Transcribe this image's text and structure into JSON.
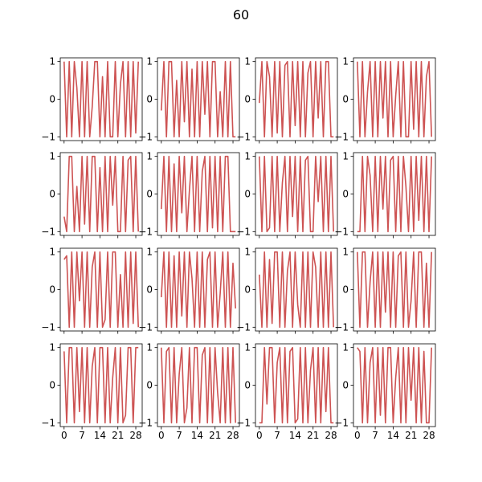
{
  "title": "60",
  "colors": {
    "line": "#cd5353",
    "axes": "#000000",
    "background": "#ffffff"
  },
  "chart_data": {
    "type": "line",
    "layout": "4x4 grid of small multiples, shared x and y axes",
    "xlim": [
      -1.5,
      30.5
    ],
    "ylim": [
      -1.1,
      1.1
    ],
    "xticks": [
      0,
      7,
      14,
      21,
      28
    ],
    "yticks": [
      -1,
      0,
      1
    ],
    "ytick_labels": [
      "−1",
      "0",
      "1"
    ],
    "grid": false,
    "panels": [
      {
        "x": [
          0,
          1,
          2,
          3,
          4,
          5,
          6,
          7,
          8,
          9,
          10,
          11,
          12,
          13,
          14,
          15,
          16,
          17,
          18,
          19,
          20,
          21,
          22,
          23,
          24,
          25,
          26,
          27,
          28,
          29
        ],
        "y": [
          1,
          -1,
          1,
          -1,
          1,
          0.3,
          -1,
          1,
          -1,
          1,
          -1,
          -0.2,
          1,
          1,
          -1,
          0.6,
          -1,
          1,
          -1,
          -1,
          1,
          -1,
          0.4,
          1,
          -1,
          1,
          -1,
          1,
          -0.9,
          1
        ]
      },
      {
        "x": [
          0,
          1,
          2,
          3,
          4,
          5,
          6,
          7,
          8,
          9,
          10,
          11,
          12,
          13,
          14,
          15,
          16,
          17,
          18,
          19,
          20,
          21,
          22,
          23,
          24,
          25,
          26,
          27,
          28,
          29
        ],
        "y": [
          -0.3,
          1,
          -1,
          1,
          1,
          -1,
          0.5,
          -1,
          1,
          -0.6,
          1,
          -1,
          0.8,
          -1,
          1,
          -1,
          1,
          -0.4,
          1,
          -1,
          1,
          1,
          -1,
          0.2,
          -1,
          1,
          -1,
          1,
          -1,
          -1
        ]
      },
      {
        "x": [
          0,
          1,
          2,
          3,
          4,
          5,
          6,
          7,
          8,
          9,
          10,
          11,
          12,
          13,
          14,
          15,
          16,
          17,
          18,
          19,
          20,
          21,
          22,
          23,
          24,
          25,
          26,
          27,
          28,
          29
        ],
        "y": [
          -0.1,
          1,
          -1,
          1,
          0.6,
          -1,
          1,
          -0.9,
          1,
          -1,
          0.9,
          1,
          -1,
          1,
          -0.7,
          1,
          -1,
          1,
          -1,
          0.7,
          1,
          -1,
          1,
          -0.5,
          1,
          -1,
          1,
          1,
          -1,
          -1
        ]
      },
      {
        "x": [
          0,
          1,
          2,
          3,
          4,
          5,
          6,
          7,
          8,
          9,
          10,
          11,
          12,
          13,
          14,
          15,
          16,
          17,
          18,
          19,
          20,
          21,
          22,
          23,
          24,
          25,
          26,
          27,
          28,
          29
        ],
        "y": [
          1,
          -1,
          1,
          -1,
          0.2,
          1,
          -1,
          1,
          -1,
          1,
          -0.5,
          1,
          -1,
          1,
          -1,
          0.1,
          1,
          -1,
          1,
          -1,
          -1,
          1,
          -0.8,
          1,
          -1,
          1,
          -1,
          0.6,
          1,
          -1
        ]
      },
      {
        "x": [
          0,
          1,
          2,
          3,
          4,
          5,
          6,
          7,
          8,
          9,
          10,
          11,
          12,
          13,
          14,
          15,
          16,
          17,
          18,
          19,
          20,
          21,
          22,
          23,
          24,
          25,
          26,
          27,
          28,
          29
        ],
        "y": [
          -0.6,
          -1,
          1,
          1,
          -1,
          0.2,
          -1,
          1,
          -0.8,
          1,
          -1,
          1,
          1,
          -1,
          0.7,
          -1,
          1,
          -1,
          1,
          -0.3,
          1,
          -1,
          -1,
          1,
          -1,
          0.9,
          1,
          -1,
          1,
          -1
        ]
      },
      {
        "x": [
          0,
          1,
          2,
          3,
          4,
          5,
          6,
          7,
          8,
          9,
          10,
          11,
          12,
          13,
          14,
          15,
          16,
          17,
          18,
          19,
          20,
          21,
          22,
          23,
          24,
          25,
          26,
          27,
          28,
          29
        ],
        "y": [
          -0.4,
          1,
          -1,
          1,
          -1,
          0.8,
          -1,
          1,
          -0.5,
          1,
          -1,
          0.1,
          1,
          -1,
          1,
          -1,
          0.6,
          1,
          -1,
          1,
          -0.9,
          1,
          -1,
          1,
          -1,
          1,
          1,
          -1,
          -1,
          -1
        ]
      },
      {
        "x": [
          0,
          1,
          2,
          3,
          4,
          5,
          6,
          7,
          8,
          9,
          10,
          11,
          12,
          13,
          14,
          15,
          16,
          17,
          18,
          19,
          20,
          21,
          22,
          23,
          24,
          25,
          26,
          27,
          28,
          29
        ],
        "y": [
          1,
          -1,
          1,
          -1,
          -0.9,
          1,
          -1,
          1,
          -1,
          0.3,
          1,
          -1,
          1,
          -0.6,
          1,
          -1,
          1,
          -1,
          0.9,
          1,
          -1,
          -1,
          1,
          -0.2,
          1,
          -1,
          1,
          -1,
          1,
          -1
        ]
      },
      {
        "x": [
          0,
          1,
          2,
          3,
          4,
          5,
          6,
          7,
          8,
          9,
          10,
          11,
          12,
          13,
          14,
          15,
          16,
          17,
          18,
          19,
          20,
          21,
          22,
          23,
          24,
          25,
          26,
          27,
          28,
          29
        ],
        "y": [
          -1,
          -1,
          1,
          -1,
          1,
          0.5,
          -1,
          1,
          -1,
          1,
          -0.4,
          1,
          -1,
          0.9,
          1,
          -1,
          1,
          -1,
          1,
          0.2,
          -1,
          1,
          -1,
          1,
          -0.7,
          1,
          -1,
          1,
          -1,
          1
        ]
      },
      {
        "x": [
          0,
          1,
          2,
          3,
          4,
          5,
          6,
          7,
          8,
          9,
          10,
          11,
          12,
          13,
          14,
          15,
          16,
          17,
          18,
          19,
          20,
          21,
          22,
          23,
          24,
          25,
          26,
          27,
          28,
          29
        ],
        "y": [
          0.8,
          0.9,
          -1,
          1,
          -1,
          1,
          -0.3,
          1,
          -1,
          1,
          -1,
          0.6,
          1,
          -1,
          1,
          -1,
          -0.8,
          1,
          -1,
          1,
          1,
          -1,
          0.4,
          -1,
          1,
          -1,
          1,
          -0.9,
          1,
          -1
        ]
      },
      {
        "x": [
          0,
          1,
          2,
          3,
          4,
          5,
          6,
          7,
          8,
          9,
          10,
          11,
          12,
          13,
          14,
          15,
          16,
          17,
          18,
          19,
          20,
          21,
          22,
          23,
          24,
          25,
          26,
          27,
          28,
          29
        ],
        "y": [
          -0.2,
          1,
          -1,
          1,
          -1,
          0.9,
          -1,
          1,
          -0.7,
          1,
          -1,
          1,
          0.3,
          -1,
          1,
          -1,
          1,
          -1,
          0.8,
          1,
          -1,
          1,
          -1,
          -0.1,
          1,
          -1,
          1,
          -1,
          0.7,
          -0.5
        ]
      },
      {
        "x": [
          0,
          1,
          2,
          3,
          4,
          5,
          6,
          7,
          8,
          9,
          10,
          11,
          12,
          13,
          14,
          15,
          16,
          17,
          18,
          19,
          20,
          21,
          22,
          23,
          24,
          25,
          26,
          27,
          28,
          29
        ],
        "y": [
          0.4,
          -1,
          1,
          -1,
          0.8,
          -0.9,
          1,
          1,
          -1,
          1,
          -1,
          0.5,
          1,
          -1,
          1,
          -0.4,
          -1,
          1,
          -1,
          1,
          -1,
          1,
          0.6,
          -1,
          1,
          -1,
          1,
          -1,
          1,
          -1
        ]
      },
      {
        "x": [
          0,
          1,
          2,
          3,
          4,
          5,
          6,
          7,
          8,
          9,
          10,
          11,
          12,
          13,
          14,
          15,
          16,
          17,
          18,
          19,
          20,
          21,
          22,
          23,
          24,
          25,
          26,
          27,
          28,
          29
        ],
        "y": [
          1,
          -1,
          1,
          1,
          -1,
          0.2,
          1,
          -1,
          1,
          -1,
          1,
          -0.6,
          1,
          -1,
          1,
          -1,
          0.9,
          1,
          -1,
          1,
          -1,
          -0.3,
          1,
          -1,
          1,
          1,
          -1,
          0.7,
          -1,
          1
        ]
      },
      {
        "x": [
          0,
          1,
          2,
          3,
          4,
          5,
          6,
          7,
          8,
          9,
          10,
          11,
          12,
          13,
          14,
          15,
          16,
          17,
          18,
          19,
          20,
          21,
          22,
          23,
          24,
          25,
          26,
          27,
          28,
          29
        ],
        "y": [
          0.9,
          -1,
          1,
          1,
          -1,
          1,
          -0.7,
          1,
          -1,
          1,
          -1,
          0.5,
          1,
          -1,
          1,
          1,
          -1,
          1,
          -1,
          0.2,
          1,
          -1,
          1,
          -1,
          -0.8,
          1,
          1,
          -1,
          1,
          1
        ]
      },
      {
        "x": [
          0,
          1,
          2,
          3,
          4,
          5,
          6,
          7,
          8,
          9,
          10,
          11,
          12,
          13,
          14,
          15,
          16,
          17,
          18,
          19,
          20,
          21,
          22,
          23,
          24,
          25,
          26,
          27,
          28,
          29
        ],
        "y": [
          1,
          -1,
          0.9,
          1,
          -1,
          1,
          -1,
          0.3,
          1,
          -1,
          -0.6,
          1,
          -1,
          1,
          1,
          -1,
          0.8,
          1,
          -1,
          1,
          -1,
          1,
          -0.2,
          -1,
          1,
          -1,
          1,
          -1,
          1,
          -1
        ]
      },
      {
        "x": [
          0,
          1,
          2,
          3,
          4,
          5,
          6,
          7,
          8,
          9,
          10,
          11,
          12,
          13,
          14,
          15,
          16,
          17,
          18,
          19,
          20,
          21,
          22,
          23,
          24,
          25,
          26,
          27,
          28,
          29
        ],
        "y": [
          -1,
          -1,
          1,
          -0.5,
          1,
          1,
          -1,
          0.6,
          1,
          -1,
          1,
          -1,
          0.9,
          1,
          -1,
          -0.9,
          1,
          -1,
          1,
          -1,
          0.4,
          1,
          -1,
          1,
          -1,
          1,
          -0.7,
          1,
          -1,
          -1
        ]
      },
      {
        "x": [
          0,
          1,
          2,
          3,
          4,
          5,
          6,
          7,
          8,
          9,
          10,
          11,
          12,
          13,
          14,
          15,
          16,
          17,
          18,
          19,
          20,
          21,
          22,
          23,
          24,
          25,
          26,
          27,
          28,
          29
        ],
        "y": [
          1,
          0.9,
          -1,
          1,
          -1,
          0.6,
          1,
          -1,
          1,
          -0.8,
          1,
          -1,
          1,
          1,
          -1,
          0.2,
          1,
          -1,
          1,
          -1,
          1,
          -0.4,
          1,
          -1,
          1,
          -1,
          0.9,
          -1,
          -1,
          1
        ]
      }
    ]
  }
}
